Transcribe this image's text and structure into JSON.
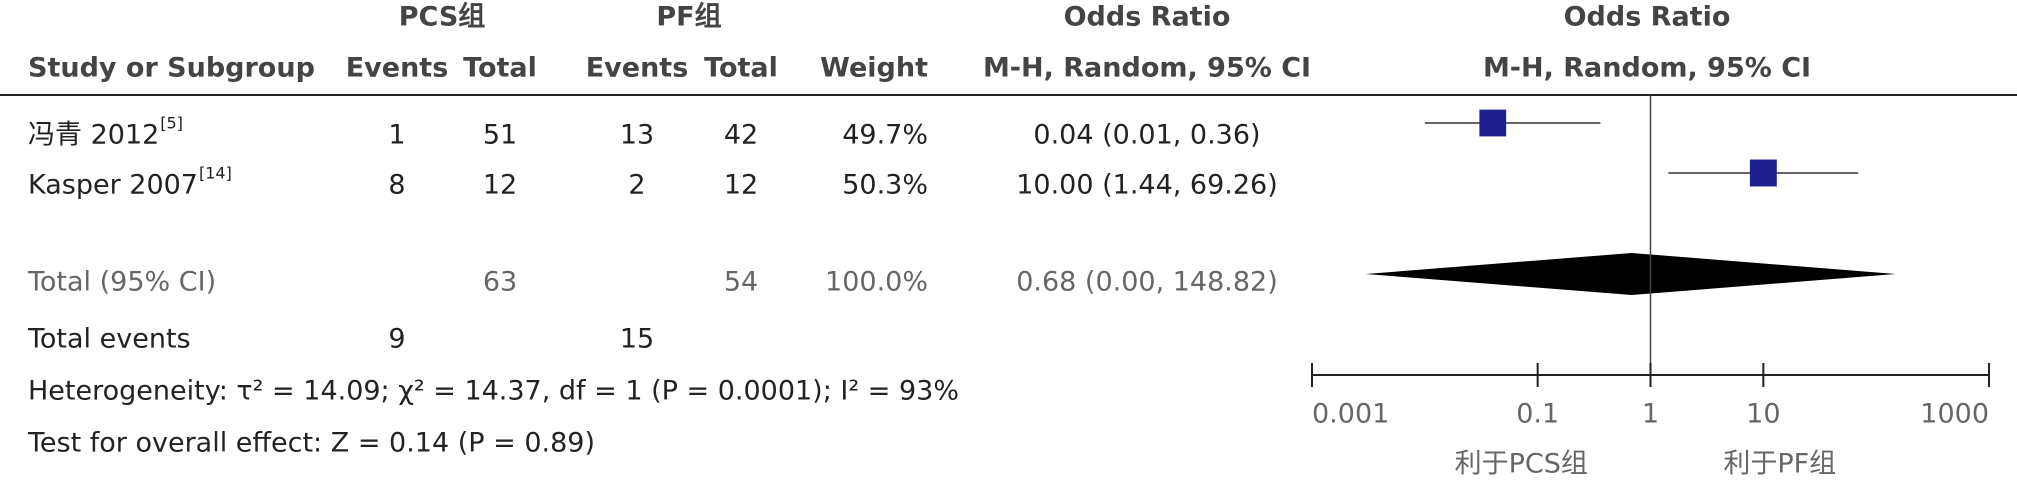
{
  "chart_data": {
    "type": "forest",
    "group_headers": [
      "PCS组",
      "PF组"
    ],
    "columns": [
      "Study or Subgroup",
      "Events",
      "Total",
      "Events",
      "Total",
      "Weight"
    ],
    "or_header": "Odds Ratio",
    "or_subheader": "M-H, Random, 95% CI",
    "plot_header": "Odds Ratio",
    "plot_subheader": "M-H, Random, 95% CI",
    "studies": [
      {
        "name": "冯青 2012",
        "ref": "[5]",
        "events1": 1,
        "total1": 51,
        "events2": 13,
        "total2": 42,
        "weight": 49.7,
        "weight_label": "49.7%",
        "or": 0.04,
        "ci_low": 0.01,
        "ci_high": 0.36,
        "or_label": "0.04 (0.01, 0.36)"
      },
      {
        "name": "Kasper 2007",
        "ref": "[14]",
        "events1": 8,
        "total1": 12,
        "events2": 2,
        "total2": 12,
        "weight": 50.3,
        "weight_label": "50.3%",
        "or": 10.0,
        "ci_low": 1.44,
        "ci_high": 69.26,
        "or_label": "10.00 (1.44, 69.26)"
      }
    ],
    "total": {
      "label": "Total (95% CI)",
      "total1": 63,
      "total2": 54,
      "weight": 100,
      "weight_label": "100.0%",
      "or": 0.68,
      "ci_low": 0.003,
      "ci_high": 148.82,
      "or_label": "0.68 (0.00, 148.82)"
    },
    "total_events": {
      "label": "Total events",
      "events1": 9,
      "events2": 15
    },
    "heterogeneity": "Heterogeneity: τ² = 14.09; χ² = 14.37, df = 1 (P = 0.0001); I² = 93%",
    "overall_effect": "Test for overall effect: Z = 0.14 (P = 0.89)",
    "xscale": "log",
    "xlim": [
      0.001,
      1000
    ],
    "xticks": [
      0.001,
      0.1,
      1,
      10,
      1000
    ],
    "reference_line": 1,
    "favours": [
      "利于PCS组",
      "利于PF组"
    ],
    "marker_color": "#1f1f8f",
    "diamond_color": "#000000"
  }
}
